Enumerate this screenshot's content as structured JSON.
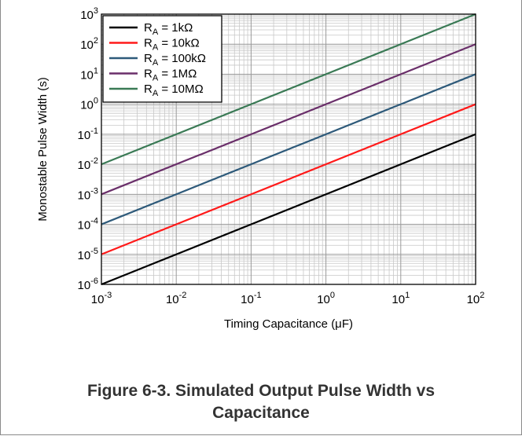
{
  "chart_data": {
    "type": "line",
    "xlabel": "Timing Capacitance (μF)",
    "ylabel": "Monostable Pulse Width (s)",
    "x_scale": "log",
    "y_scale": "log",
    "xlim": [
      0.001,
      100
    ],
    "ylim": [
      1e-06,
      1000
    ],
    "grid": true,
    "legend_position": "top-left",
    "x_ticks": [
      {
        "base": "10",
        "exp": "-3"
      },
      {
        "base": "10",
        "exp": "-2"
      },
      {
        "base": "10",
        "exp": "-1"
      },
      {
        "base": "10",
        "exp": "0"
      },
      {
        "base": "10",
        "exp": "1"
      },
      {
        "base": "10",
        "exp": "2"
      }
    ],
    "y_ticks": [
      {
        "base": "10",
        "exp": "-6"
      },
      {
        "base": "10",
        "exp": "-5"
      },
      {
        "base": "10",
        "exp": "-4"
      },
      {
        "base": "10",
        "exp": "-3"
      },
      {
        "base": "10",
        "exp": "-2"
      },
      {
        "base": "10",
        "exp": "-1"
      },
      {
        "base": "10",
        "exp": "0"
      },
      {
        "base": "10",
        "exp": "1"
      },
      {
        "base": "10",
        "exp": "2"
      },
      {
        "base": "10",
        "exp": "3"
      }
    ],
    "series": [
      {
        "name": "RA = 1kΩ",
        "label_main": "R",
        "label_sub": "A",
        "label_rest": " = 1kΩ",
        "color": "#000000",
        "x": [
          0.001,
          100
        ],
        "y": [
          1e-06,
          0.1
        ]
      },
      {
        "name": "RA = 10kΩ",
        "label_main": "R",
        "label_sub": "A",
        "label_rest": " = 10kΩ",
        "color": "#ff1a1a",
        "x": [
          0.001,
          100
        ],
        "y": [
          1e-05,
          1
        ]
      },
      {
        "name": "RA = 100kΩ",
        "label_main": "R",
        "label_sub": "A",
        "label_rest": " = 100kΩ",
        "color": "#2e5a7a",
        "x": [
          0.001,
          100
        ],
        "y": [
          0.0001,
          10
        ]
      },
      {
        "name": "RA = 1MΩ",
        "label_main": "R",
        "label_sub": "A",
        "label_rest": " = 1MΩ",
        "color": "#6a2f6a",
        "x": [
          0.001,
          100
        ],
        "y": [
          0.001,
          100
        ]
      },
      {
        "name": "RA = 10MΩ",
        "label_main": "R",
        "label_sub": "A",
        "label_rest": " = 10MΩ",
        "color": "#3a7a55",
        "x": [
          0.001,
          100
        ],
        "y": [
          0.01,
          1000
        ]
      }
    ]
  },
  "caption": {
    "line1": "Figure 6-3. Simulated Output Pulse Width vs",
    "line2": "Capacitance"
  }
}
